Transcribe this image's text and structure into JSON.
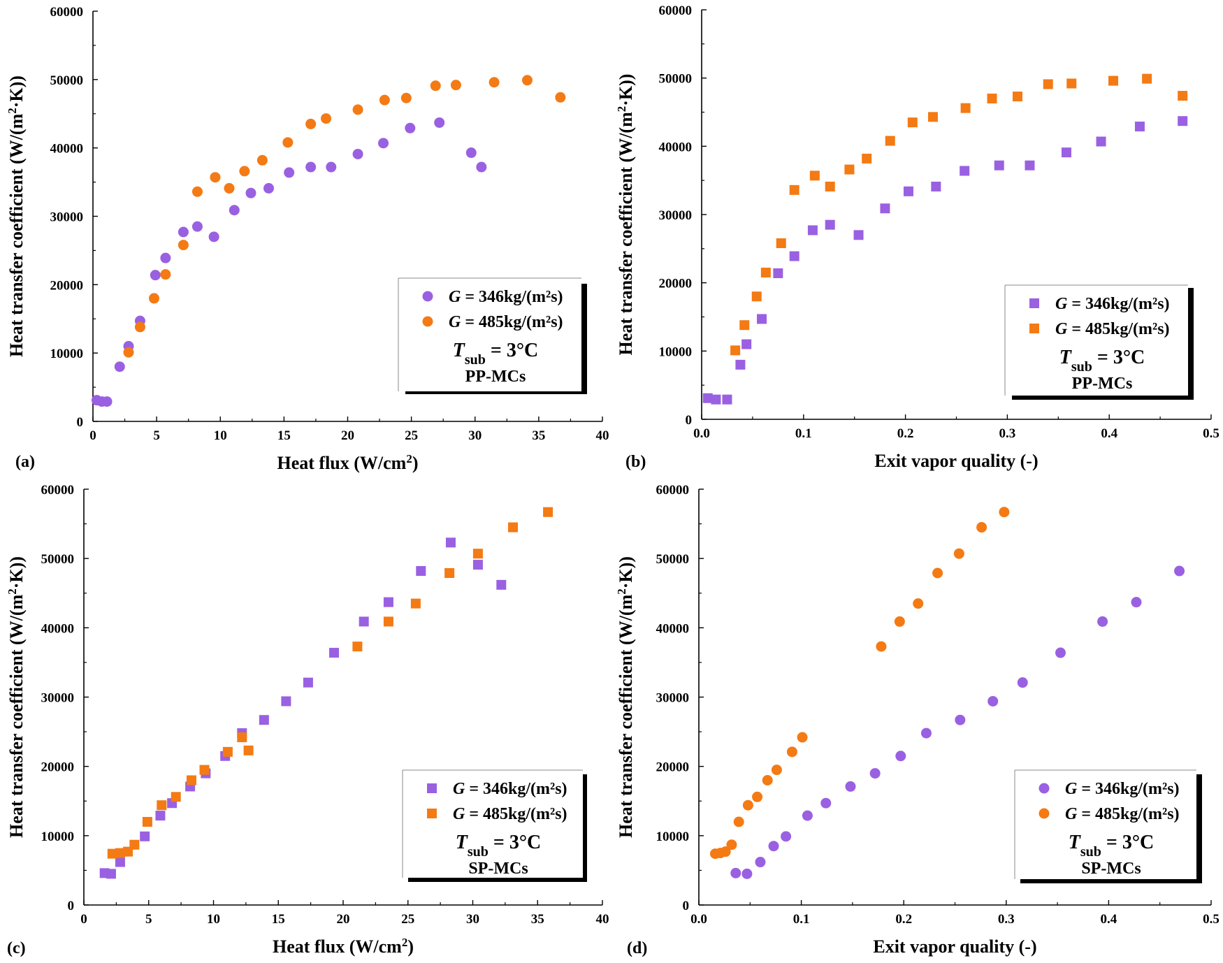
{
  "colors": {
    "purple": "#9a60e2",
    "orange": "#f47a14",
    "axis": "#000000"
  },
  "legend_labels": {
    "g_symbol": "G",
    "series_346": " = 346kg/(m²s)",
    "series_485": " = 485kg/(m²s)",
    "t_symbol": "T",
    "t_sub": "sub",
    "t_value": " = 3°C"
  },
  "chart_data": [
    {
      "id": "a",
      "type": "scatter",
      "panel_label": "(a)",
      "xlabel": "Heat flux (W/cm",
      "xlabel_sup": "2",
      "xlabel_end": ")",
      "ylabel": "Heat transfer coefficient (W/(m",
      "ylabel_sup": "2",
      "ylabel_end": "·K))",
      "xlim": [
        0,
        40
      ],
      "ylim": [
        0,
        60000
      ],
      "xticks": [
        0,
        5,
        10,
        15,
        20,
        25,
        30,
        35,
        40
      ],
      "xtick_labels": [
        "0",
        "5",
        "10",
        "15",
        "20",
        "25",
        "30",
        "35",
        "40"
      ],
      "yticks": [
        0,
        10000,
        20000,
        30000,
        40000,
        50000,
        60000
      ],
      "ytick_labels": [
        "0",
        "10000",
        "20000",
        "30000",
        "40000",
        "50000",
        "60000"
      ],
      "marker": "circle",
      "legend_position": "bottom-right",
      "channel_label": "PP-MCs",
      "series": [
        {
          "name": "G = 346kg/(m²s)",
          "color": "#9a60e2",
          "x": [
            0.3,
            0.7,
            1.1,
            2.1,
            2.8,
            3.7,
            4.9,
            5.7,
            7.1,
            8.2,
            9.5,
            11.1,
            12.4,
            13.8,
            15.4,
            17.1,
            18.7,
            20.8,
            22.8,
            24.9,
            27.2,
            29.7,
            30.5
          ],
          "y": [
            3100,
            2900,
            2900,
            8000,
            11000,
            14700,
            21400,
            23900,
            27700,
            28500,
            27000,
            30900,
            33400,
            34100,
            36400,
            37200,
            37200,
            39100,
            40700,
            42900,
            43700,
            39300,
            37200
          ]
        },
        {
          "name": "G = 485kg/(m²s)",
          "color": "#f47a14",
          "x": [
            2.8,
            3.7,
            4.8,
            5.7,
            7.1,
            8.2,
            9.6,
            10.7,
            11.9,
            13.3,
            15.3,
            17.1,
            18.3,
            20.8,
            22.9,
            24.6,
            26.9,
            28.5,
            31.5,
            34.1,
            36.7
          ],
          "y": [
            10100,
            13800,
            18000,
            21500,
            25800,
            33600,
            35700,
            34100,
            36600,
            38200,
            40800,
            43500,
            44300,
            45600,
            47000,
            47300,
            49100,
            49200,
            49600,
            49900,
            47400
          ]
        }
      ]
    },
    {
      "id": "b",
      "type": "scatter",
      "panel_label": "(b)",
      "xlabel": "Exit vapor quality (-)",
      "xlabel_sup": "",
      "xlabel_end": "",
      "ylabel": "Heat transfer coefficient (W/(m",
      "ylabel_sup": "2",
      "ylabel_end": "·K))",
      "xlim": [
        0,
        0.5
      ],
      "ylim": [
        0,
        60000
      ],
      "xticks": [
        0,
        0.1,
        0.2,
        0.3,
        0.4,
        0.5
      ],
      "xtick_labels": [
        "0.0",
        "0.1",
        "0.2",
        "0.3",
        "0.4",
        "0.5"
      ],
      "yticks": [
        0,
        10000,
        20000,
        30000,
        40000,
        50000,
        60000
      ],
      "ytick_labels": [
        "0",
        "10000",
        "20000",
        "30000",
        "40000",
        "50000",
        "60000"
      ],
      "marker": "square",
      "legend_position": "bottom-right",
      "channel_label": "PP-MCs",
      "series": [
        {
          "name": "G = 346kg/(m²s)",
          "color": "#9a60e2",
          "x": [
            0.006,
            0.014,
            0.025,
            0.038,
            0.044,
            0.059,
            0.075,
            0.091,
            0.109,
            0.126,
            0.154,
            0.18,
            0.203,
            0.23,
            0.258,
            0.292,
            0.322,
            0.358,
            0.392,
            0.43,
            0.472
          ],
          "y": [
            3100,
            2900,
            2900,
            8000,
            11000,
            14700,
            21400,
            23900,
            27700,
            28500,
            27000,
            30900,
            33400,
            34100,
            36400,
            37200,
            37200,
            39100,
            40700,
            42900,
            43700
          ]
        },
        {
          "name": "G = 485kg/(m²s)",
          "color": "#f47a14",
          "x": [
            0.033,
            0.042,
            0.054,
            0.063,
            0.078,
            0.091,
            0.111,
            0.126,
            0.145,
            0.162,
            0.185,
            0.207,
            0.227,
            0.259,
            0.285,
            0.31,
            0.34,
            0.363,
            0.404,
            0.437,
            0.472
          ],
          "y": [
            10100,
            13800,
            18000,
            21500,
            25800,
            33600,
            35700,
            34100,
            36600,
            38200,
            40800,
            43500,
            44300,
            45600,
            47000,
            47300,
            49100,
            49200,
            49600,
            49900,
            47400
          ]
        }
      ]
    },
    {
      "id": "c",
      "type": "scatter",
      "panel_label": "(c)",
      "xlabel": "Heat flux (W/cm",
      "xlabel_sup": "2",
      "xlabel_end": ")",
      "ylabel": "Heat transfer coefficient (W/(m",
      "ylabel_sup": "2",
      "ylabel_end": "·K))",
      "xlim": [
        0,
        40
      ],
      "ylim": [
        0,
        60000
      ],
      "xticks": [
        0,
        5,
        10,
        15,
        20,
        25,
        30,
        35,
        40
      ],
      "xtick_labels": [
        "0",
        "5",
        "10",
        "15",
        "20",
        "25",
        "30",
        "35",
        "40"
      ],
      "yticks": [
        0,
        10000,
        20000,
        30000,
        40000,
        50000,
        60000
      ],
      "ytick_labels": [
        "0",
        "10000",
        "20000",
        "30000",
        "40000",
        "50000",
        "60000"
      ],
      "marker": "square",
      "legend_position": "bottom-right",
      "channel_label": "SP-MCs",
      "series": [
        {
          "name": "G = 346kg/(m²s)",
          "color": "#9a60e2",
          "x": [
            1.6,
            2.1,
            2.8,
            4.7,
            5.9,
            6.8,
            8.2,
            9.4,
            10.9,
            12.2,
            13.9,
            15.6,
            17.3,
            19.3,
            21.6,
            23.5,
            26.0,
            28.3,
            30.4,
            32.2
          ],
          "y": [
            4600,
            4500,
            6200,
            9900,
            12900,
            14700,
            17100,
            19000,
            21500,
            24800,
            26700,
            29400,
            32100,
            36400,
            40900,
            43700,
            48200,
            52300,
            49100,
            46200
          ]
        },
        {
          "name": "G = 485kg/(m²s)",
          "color": "#f47a14",
          "x": [
            2.2,
            2.8,
            3.4,
            3.9,
            4.9,
            6.0,
            7.1,
            8.3,
            9.3,
            11.1,
            12.2,
            12.7,
            21.1,
            23.5,
            25.6,
            28.2,
            30.4,
            33.1,
            35.8
          ],
          "y": [
            7400,
            7500,
            7700,
            8700,
            12000,
            14400,
            15600,
            18000,
            19500,
            22100,
            24200,
            22300,
            37300,
            40900,
            43500,
            47900,
            50700,
            54500,
            56700
          ]
        }
      ]
    },
    {
      "id": "d",
      "type": "scatter",
      "panel_label": "(d)",
      "xlabel": "Exit vapor quality (-)",
      "xlabel_sup": "",
      "xlabel_end": "",
      "ylabel": "Heat transfer coefficient (W/(m",
      "ylabel_sup": "2",
      "ylabel_end": "·K))",
      "xlim": [
        0,
        0.5
      ],
      "ylim": [
        0,
        60000
      ],
      "xticks": [
        0,
        0.1,
        0.2,
        0.3,
        0.4,
        0.5
      ],
      "xtick_labels": [
        "0.0",
        "0.1",
        "0.2",
        "0.3",
        "0.4",
        "0.5"
      ],
      "yticks": [
        0,
        10000,
        20000,
        30000,
        40000,
        50000,
        60000
      ],
      "ytick_labels": [
        "0",
        "10000",
        "20000",
        "30000",
        "40000",
        "50000",
        "60000"
      ],
      "marker": "circle",
      "legend_position": "bottom-right",
      "channel_label": "SP-MCs",
      "series": [
        {
          "name": "G = 346kg/(m²s)",
          "color": "#9a60e2",
          "x": [
            0.036,
            0.047,
            0.06,
            0.073,
            0.085,
            0.106,
            0.124,
            0.148,
            0.172,
            0.197,
            0.222,
            0.255,
            0.287,
            0.316,
            0.353,
            0.394,
            0.427,
            0.469
          ],
          "y": [
            4600,
            4500,
            6200,
            8500,
            9900,
            12900,
            14700,
            17100,
            19000,
            21500,
            24800,
            26700,
            29400,
            32100,
            36400,
            40900,
            43700,
            48200
          ]
        },
        {
          "name": "G = 485kg/(m²s)",
          "color": "#f47a14",
          "x": [
            0.016,
            0.021,
            0.026,
            0.032,
            0.039,
            0.048,
            0.057,
            0.067,
            0.076,
            0.091,
            0.101,
            0.178,
            0.196,
            0.214,
            0.233,
            0.254,
            0.276,
            0.298
          ],
          "y": [
            7400,
            7500,
            7700,
            8700,
            12000,
            14400,
            15600,
            18000,
            19500,
            22100,
            24200,
            37300,
            40900,
            43500,
            47900,
            50700,
            54500,
            56700
          ]
        }
      ]
    }
  ]
}
